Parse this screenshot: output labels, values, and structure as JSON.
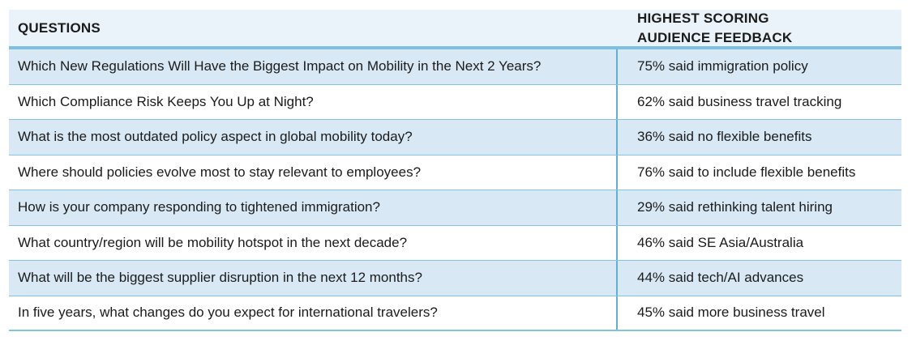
{
  "colors": {
    "header-bg": "#EBF3FA",
    "row-alt-bg": "#D8E9F5",
    "row-bg": "#FFFFFF",
    "rule-strong": "#7EC0E1",
    "rule-thin": "#85C3E2",
    "divider": "#5FAFD7",
    "text": "#1B1B1B"
  },
  "table": {
    "columns": {
      "questions_label": "QUESTIONS",
      "feedback_label": "HIGHEST SCORING\nAUDIENCE FEEDBACK"
    },
    "rows": [
      {
        "question": "Which New Regulations Will Have the Biggest Impact on Mobility in the Next 2 Years?",
        "feedback": "75% said immigration policy"
      },
      {
        "question": "Which Compliance Risk Keeps You Up at Night?",
        "feedback": "62% said business travel tracking"
      },
      {
        "question": "What is the most outdated policy aspect in global mobility today?",
        "feedback": "36% said no flexible benefits"
      },
      {
        "question": "Where should policies evolve most to stay relevant to employees?",
        "feedback": "76% said to include flexible benefits"
      },
      {
        "question": "How is your company responding to tightened immigration?",
        "feedback": "29% said rethinking talent hiring"
      },
      {
        "question": "What country/region will be mobility hotspot in the next decade?",
        "feedback": "46% said SE Asia/Australia"
      },
      {
        "question": "What will be the biggest supplier disruption in the next 12 months?",
        "feedback": "44% said tech/AI advances"
      },
      {
        "question": "In five years, what changes do you expect for international travelers?",
        "feedback": "45% said more business travel"
      }
    ]
  }
}
